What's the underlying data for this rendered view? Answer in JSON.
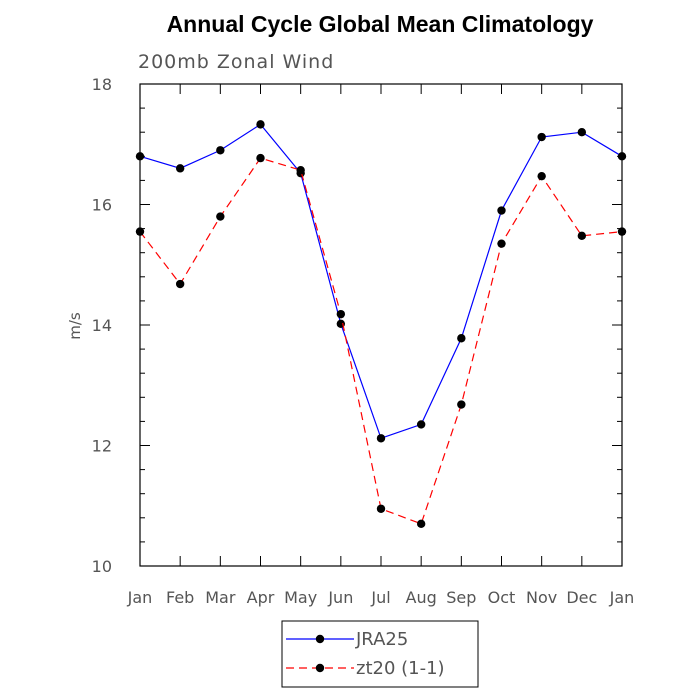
{
  "chart_data": {
    "type": "line",
    "title": "Annual Cycle Global Mean Climatology",
    "subtitle": "200mb Zonal Wind",
    "ylabel": "m/s",
    "xlabel": "",
    "categories": [
      "Jan",
      "Feb",
      "Mar",
      "Apr",
      "May",
      "Jun",
      "Jul",
      "Aug",
      "Sep",
      "Oct",
      "Nov",
      "Dec",
      "Jan"
    ],
    "ylim": [
      10,
      18
    ],
    "yticks": [
      10,
      12,
      14,
      16,
      18
    ],
    "grid": false,
    "legend_position": "bottom",
    "series": [
      {
        "name": "JRA25",
        "color": "#0000ff",
        "dash": "solid",
        "values": [
          16.8,
          16.6,
          16.9,
          17.33,
          16.52,
          14.02,
          12.12,
          12.35,
          13.78,
          15.9,
          17.12,
          17.2,
          16.8
        ]
      },
      {
        "name": "zt20 (1-1)",
        "color": "#ff0000",
        "dash": "dashed",
        "values": [
          15.55,
          14.68,
          15.8,
          16.77,
          16.57,
          14.18,
          10.95,
          10.7,
          12.68,
          15.35,
          16.47,
          15.48,
          15.55
        ]
      }
    ]
  }
}
